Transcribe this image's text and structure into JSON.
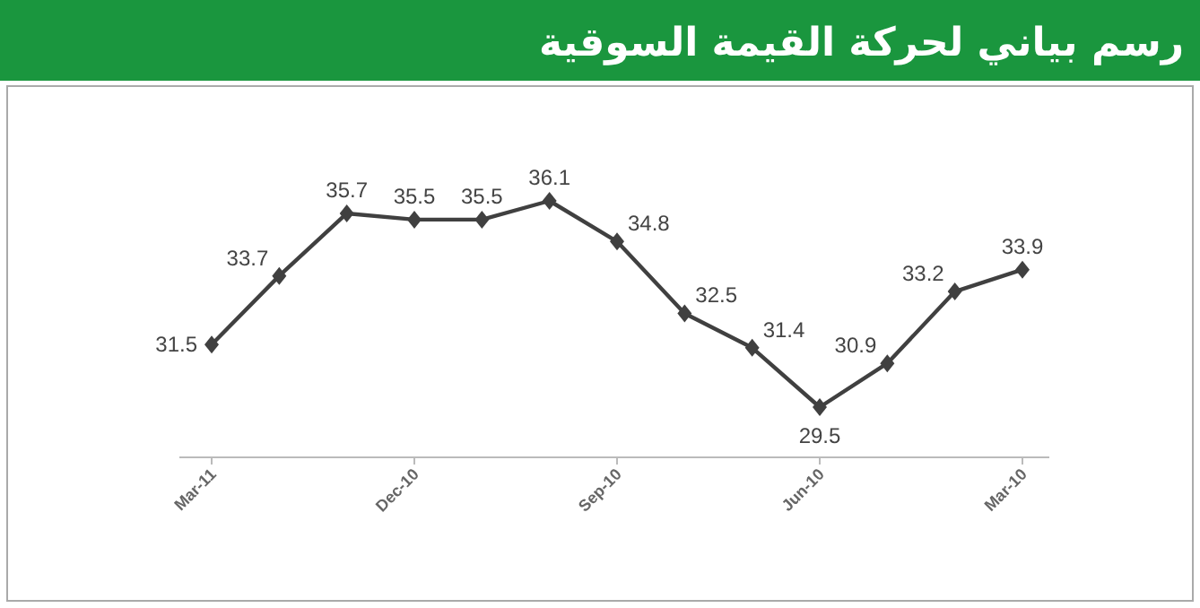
{
  "chart_data": {
    "type": "line",
    "title": "رسم بياني لحركة القيمة السوقية",
    "categories": [
      "Mar-11",
      null,
      null,
      "Dec-10",
      null,
      null,
      "Sep-10",
      null,
      null,
      "Jun-10",
      null,
      null,
      "Mar-10"
    ],
    "values": [
      31.5,
      33.7,
      35.7,
      35.5,
      35.5,
      36.1,
      34.8,
      32.5,
      31.4,
      29.5,
      30.9,
      33.2,
      33.9
    ],
    "color": "#404040",
    "marker": "diamond",
    "data_labels": true
  }
}
